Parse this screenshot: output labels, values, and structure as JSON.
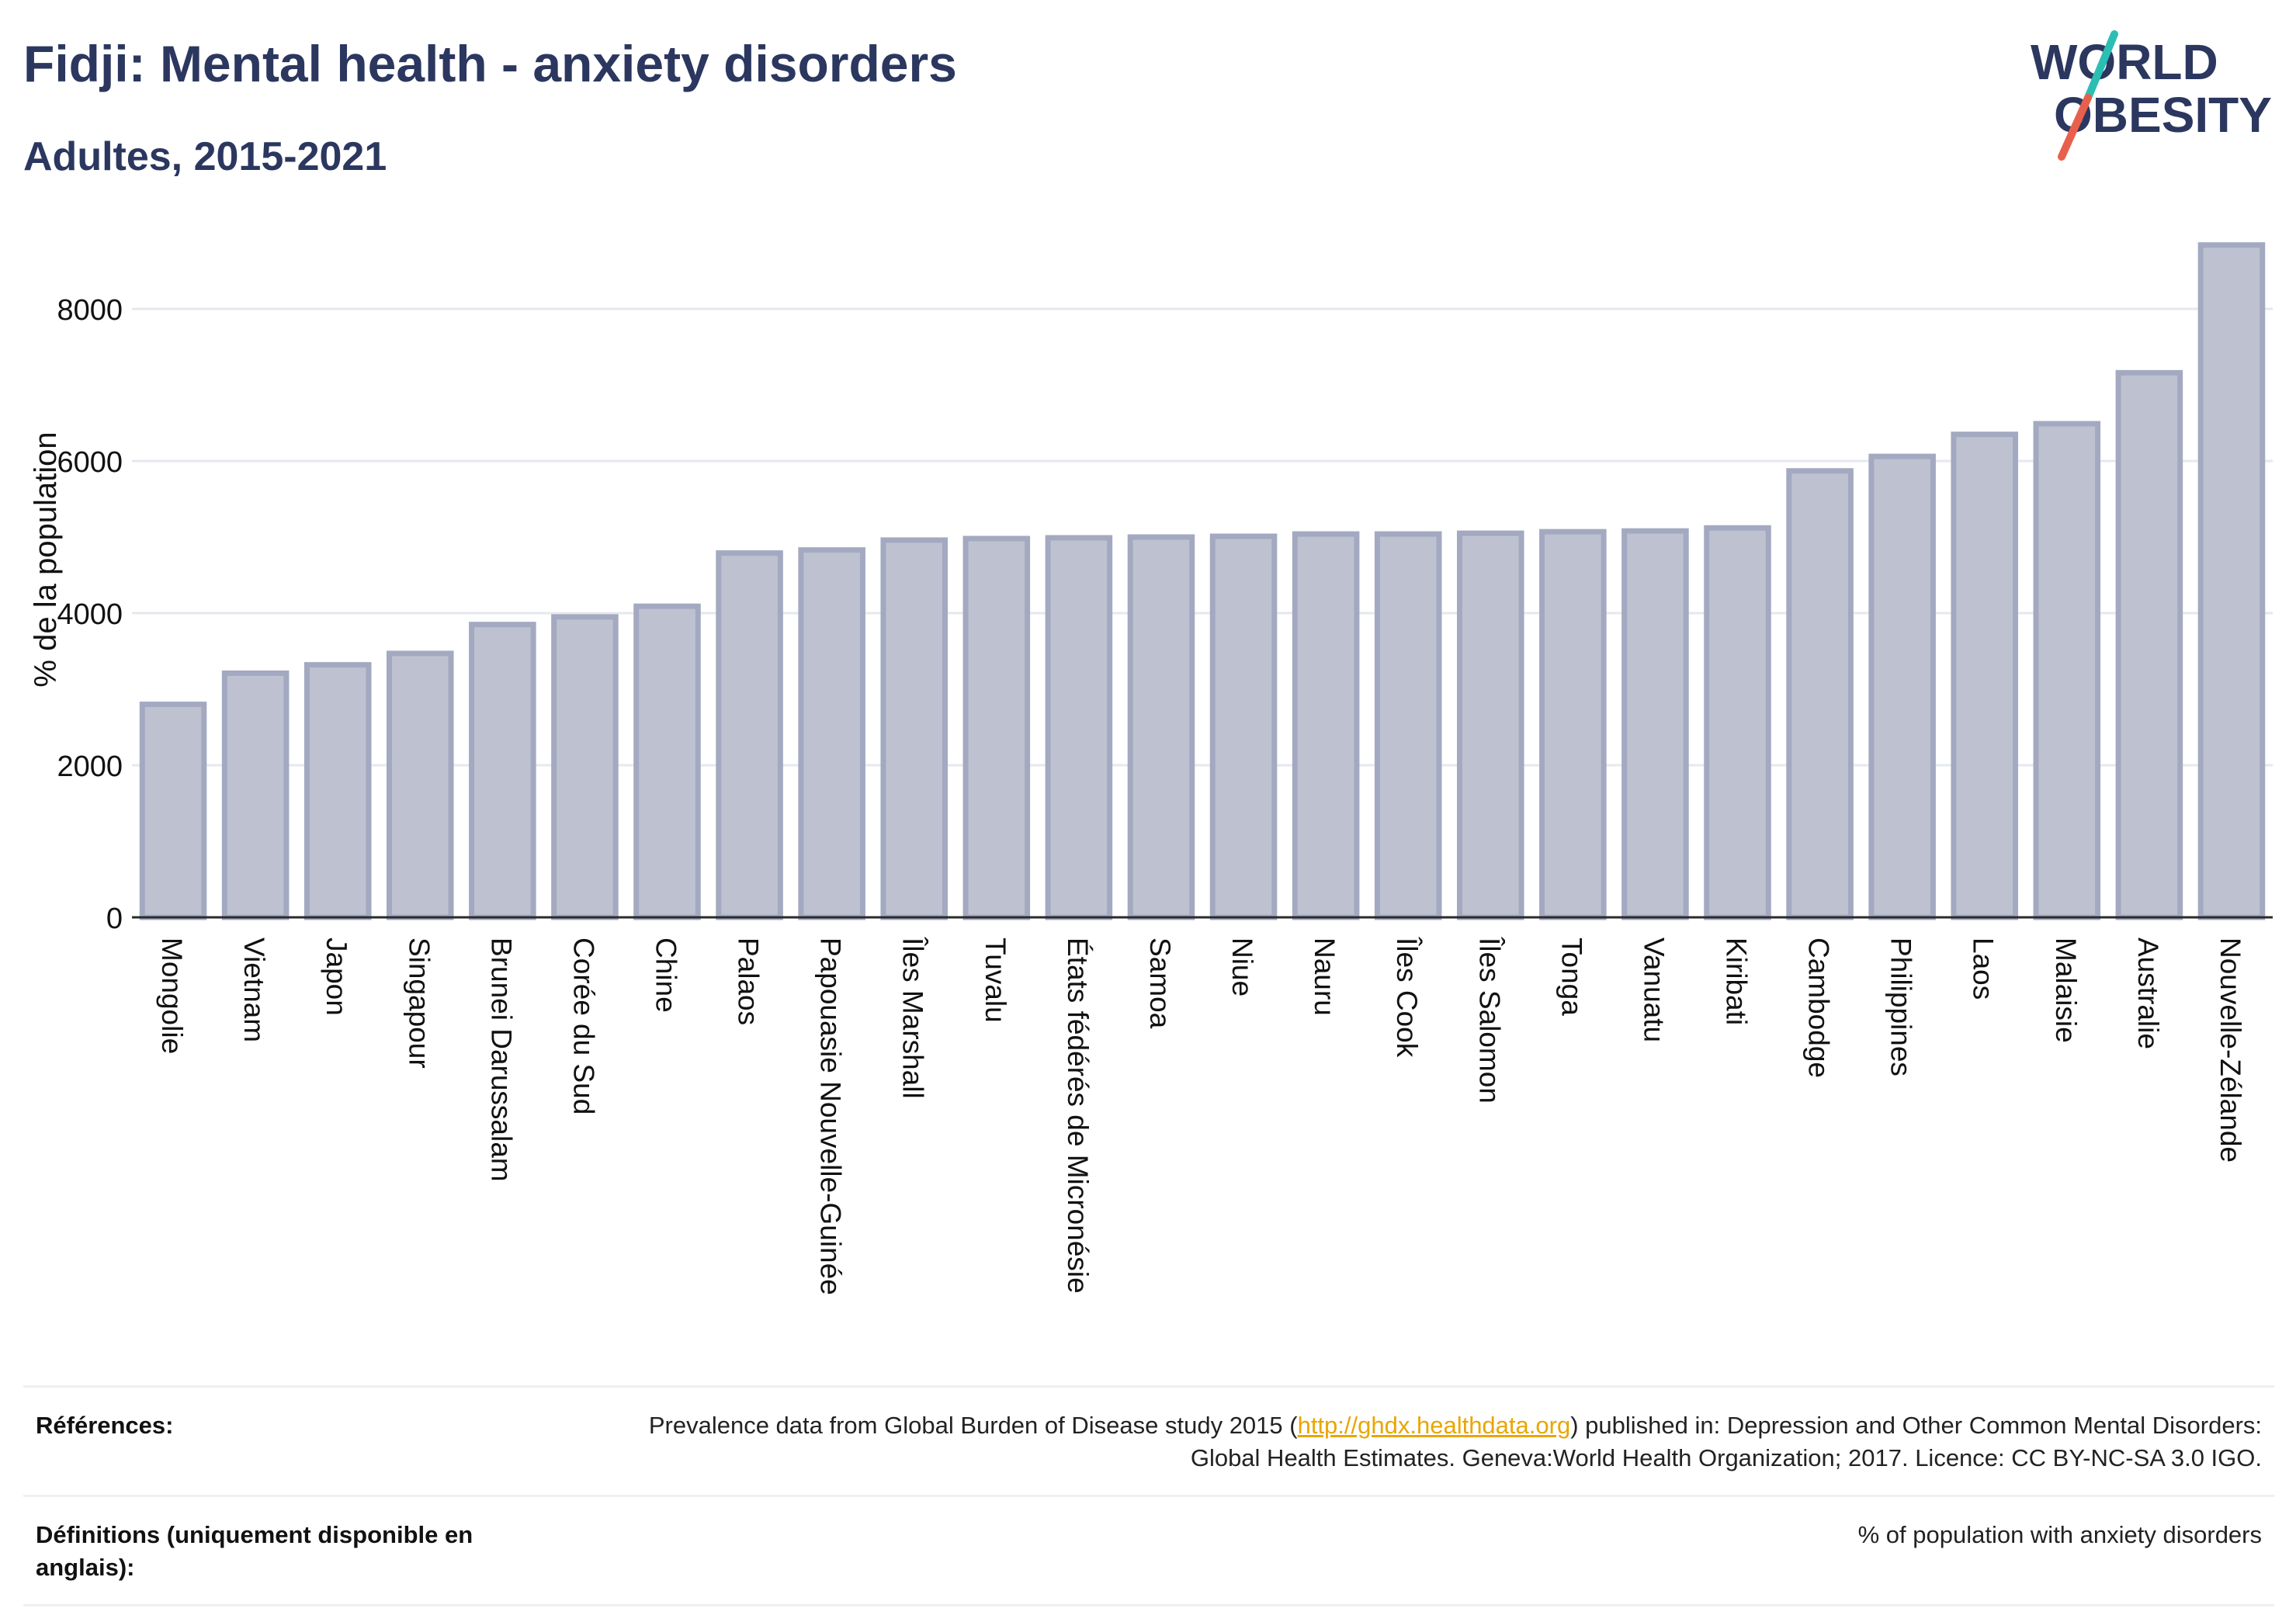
{
  "header": {
    "title": "Fidji: Mental health - anxiety disorders",
    "subtitle": "Adultes, 2015-2021"
  },
  "logo": {
    "line1": "WORLD",
    "line2": "OBESITY",
    "text_color": "#2b375f",
    "slash_colors": [
      "#2bbfb3",
      "#e8604c"
    ]
  },
  "chart_data": {
    "type": "bar",
    "title": "Fidji: Mental health - anxiety disorders",
    "subtitle": "Adultes, 2015-2021",
    "xlabel": "",
    "ylabel": "% de la population",
    "ylim": [
      0,
      9000
    ],
    "yticks": [
      0,
      2000,
      4000,
      6000,
      8000
    ],
    "grid": true,
    "bar_fill": "#bec2d0",
    "bar_stroke": "#a3a9c0",
    "categories": [
      "Mongolie",
      "Vietnam",
      "Japon",
      "Singapour",
      "Brunei Darussalam",
      "Corée du Sud",
      "Chine",
      "Palaos",
      "Papouasie Nouvelle-Guinée",
      "Îles Marshall",
      "Tuvalu",
      "États fédérés de Micronésie",
      "Samoa",
      "Niue",
      "Nauru",
      "Îles Cook",
      "Îles Salomon",
      "Tonga",
      "Vanuatu",
      "Kiribati",
      "Cambodge",
      "Philippines",
      "Laos",
      "Malaisie",
      "Australie",
      "Nouvelle-Zélande"
    ],
    "values": [
      2800,
      3210,
      3320,
      3470,
      3850,
      3950,
      4090,
      4790,
      4830,
      4960,
      4980,
      4990,
      5000,
      5010,
      5040,
      5040,
      5050,
      5070,
      5080,
      5120,
      5870,
      6060,
      6350,
      6490,
      7160,
      8840
    ]
  },
  "references": {
    "label": "Références:",
    "text_before": "Prevalence data from Global Burden of Disease study 2015 (",
    "link": "http://ghdx.healthdata.org",
    "text_after": ") published in: Depression and Other Common Mental Disorders: Global Health Estimates. Geneva:World Health Organization; 2017. Licence: CC BY-NC-SA 3.0 IGO."
  },
  "definitions": {
    "label": "Définitions (uniquement disponible en anglais):",
    "text": "% of population with anxiety disorders"
  }
}
